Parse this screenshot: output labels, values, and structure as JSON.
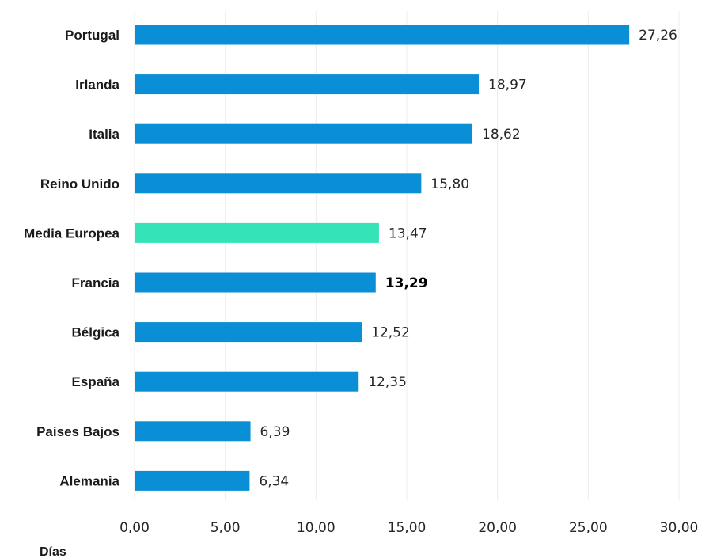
{
  "chart_data": {
    "type": "bar",
    "orientation": "horizontal",
    "categories": [
      "Portugal",
      "Irlanda",
      "Italia",
      "Reino Unido",
      "Media Europea",
      "Francia",
      "Bélgica",
      "España",
      "Paises Bajos",
      "Alemania"
    ],
    "values": [
      27.26,
      18.97,
      18.62,
      15.8,
      13.47,
      13.29,
      12.52,
      12.35,
      6.39,
      6.34
    ],
    "value_labels": [
      "27,26",
      "18,97",
      "18,62",
      "15,80",
      "13,47",
      "13,29",
      "12,52",
      "12,35",
      "6,39",
      "6,34"
    ],
    "highlight_category": "Media Europea",
    "emphasized_label_category": "Francia",
    "xlim": [
      0,
      30
    ],
    "xticks": [
      0,
      5,
      10,
      15,
      20,
      25,
      30
    ],
    "xtick_labels": [
      "0,00",
      "5,00",
      "10,00",
      "15,00",
      "20,00",
      "25,00",
      "30,00"
    ],
    "xlabel": "Días",
    "ylabel": "",
    "title": "",
    "grid": true,
    "legend": false,
    "colors": {
      "bar": "#0a8fd6",
      "highlight": "#35e3b9",
      "grid": "#ececec"
    }
  }
}
